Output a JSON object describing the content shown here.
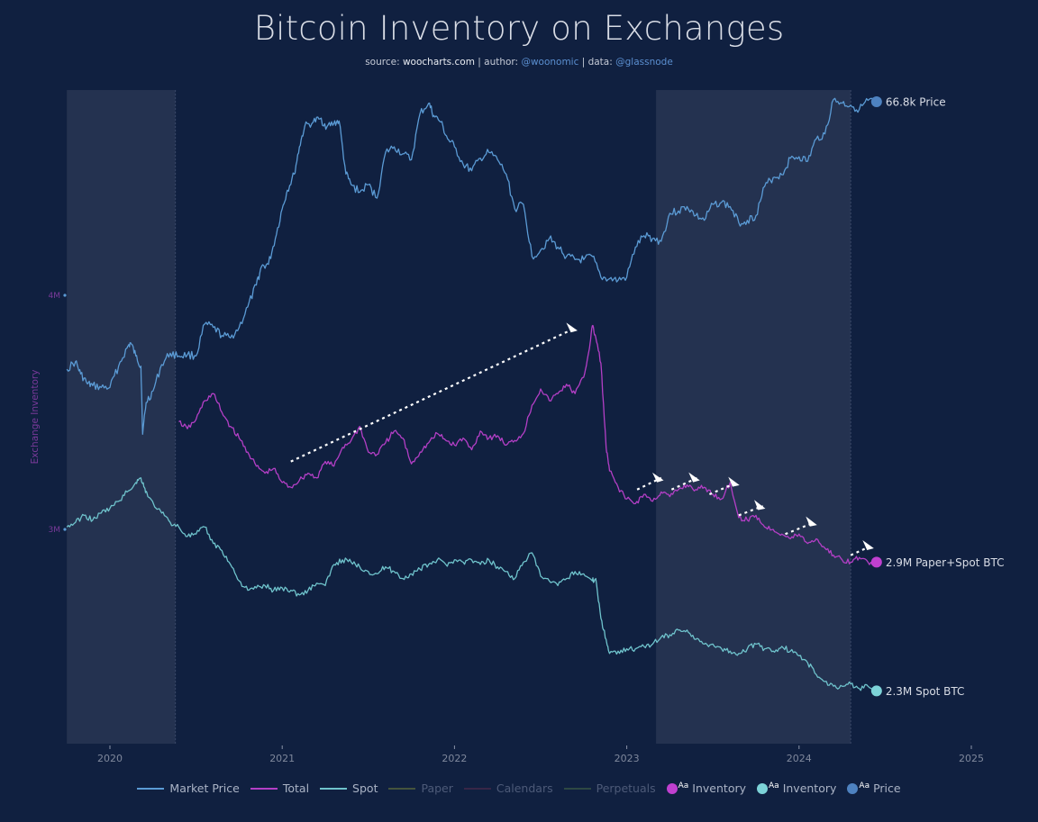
{
  "header": {
    "title": "Bitcoin Inventory on Exchanges",
    "subtitle": {
      "source_label": "source: ",
      "source": "woocharts.com",
      "author_label": " | author: ",
      "author": "@woonomic",
      "data_label": " | data: ",
      "data": "@glassnode"
    }
  },
  "legend": [
    {
      "label": "Market Price",
      "kind": "line",
      "color": "#5b9bd5",
      "active": true
    },
    {
      "label": "Total",
      "kind": "line",
      "color": "#b43fc6",
      "active": true
    },
    {
      "label": "Spot",
      "kind": "line",
      "color": "#6fc3cc",
      "active": true
    },
    {
      "label": "Paper",
      "kind": "line",
      "color": "#5c6b3a",
      "active": false
    },
    {
      "label": "Calendars",
      "kind": "line",
      "color": "#4a2a4a",
      "active": false
    },
    {
      "label": "Perpetuals",
      "kind": "line",
      "color": "#3c5a44",
      "active": false
    },
    {
      "label": "Inventory",
      "kind": "marker",
      "color": "#c040d0",
      "active": true
    },
    {
      "label": "Inventory",
      "kind": "marker",
      "color": "#7dd3d8",
      "active": true
    },
    {
      "label": "Price",
      "kind": "marker",
      "color": "#4e82c0",
      "active": true
    }
  ],
  "chart_data": {
    "type": "line",
    "title": "Bitcoin Inventory on Exchanges",
    "xlabel": "",
    "ylabel": "Exchange Inventory",
    "xlim": [
      2019.75,
      2025.05
    ],
    "ylim_inventory_M": [
      2.05,
      4.85
    ],
    "price_axis": "log, hidden",
    "price_range_k": [
      6,
      75
    ],
    "x_ticks": [
      2020,
      2021,
      2022,
      2023,
      2024,
      2025
    ],
    "x_tick_labels": [
      "2020",
      "2021",
      "2022",
      "2023",
      "2024",
      "2025"
    ],
    "y_ticks": [
      3,
      4
    ],
    "y_tick_labels": [
      "3M",
      "4M"
    ],
    "grid": false,
    "legend_position": "bottom",
    "shaded_regions": [
      [
        2019.75,
        2020.38
      ],
      [
        2023.17,
        2024.3
      ]
    ],
    "series": [
      {
        "name": "Market Price",
        "unit": "USD thousands",
        "color": "#5b9bd5",
        "axis": "price",
        "x": [
          2019.75,
          2019.8,
          2019.83,
          2019.87,
          2019.9,
          2019.95,
          2020.0,
          2020.05,
          2020.1,
          2020.12,
          2020.15,
          2020.18,
          2020.19,
          2020.21,
          2020.25,
          2020.3,
          2020.35,
          2020.4,
          2020.45,
          2020.5,
          2020.55,
          2020.6,
          2020.65,
          2020.7,
          2020.75,
          2020.8,
          2020.85,
          2020.88,
          2020.92,
          2020.96,
          2021.0,
          2021.03,
          2021.07,
          2021.1,
          2021.13,
          2021.18,
          2021.22,
          2021.26,
          2021.3,
          2021.33,
          2021.37,
          2021.4,
          2021.45,
          2021.5,
          2021.55,
          2021.6,
          2021.65,
          2021.7,
          2021.75,
          2021.8,
          2021.85,
          2021.88,
          2021.92,
          2021.96,
          2022.0,
          2022.05,
          2022.1,
          2022.15,
          2022.2,
          2022.25,
          2022.3,
          2022.35,
          2022.4,
          2022.45,
          2022.5,
          2022.55,
          2022.6,
          2022.65,
          2022.7,
          2022.75,
          2022.8,
          2022.85,
          2022.9,
          2022.95,
          2023.0,
          2023.05,
          2023.1,
          2023.15,
          2023.2,
          2023.25,
          2023.3,
          2023.35,
          2023.4,
          2023.45,
          2023.5,
          2023.55,
          2023.6,
          2023.65,
          2023.7,
          2023.75,
          2023.8,
          2023.85,
          2023.9,
          2023.95,
          2024.0,
          2024.05,
          2024.1,
          2024.15,
          2024.2,
          2024.25,
          2024.3,
          2024.35,
          2024.4,
          2024.45
        ],
        "values": [
          8.3,
          8.8,
          8.0,
          7.4,
          7.3,
          7.2,
          7.2,
          8.5,
          9.8,
          10.2,
          9.2,
          8.5,
          5.0,
          6.4,
          7.0,
          8.6,
          9.4,
          9.2,
          9.3,
          9.2,
          11.8,
          11.5,
          10.8,
          10.6,
          11.5,
          13.5,
          16.0,
          18.5,
          18.8,
          23.0,
          29.0,
          33.5,
          38.0,
          47.0,
          55.0,
          57.0,
          58.5,
          55.0,
          56.5,
          57.5,
          38.0,
          35.0,
          33.0,
          35.0,
          31.5,
          45.0,
          47.0,
          44.5,
          42.5,
          61.0,
          66.0,
          60.0,
          57.0,
          50.0,
          47.0,
          41.0,
          39.0,
          43.0,
          45.0,
          42.5,
          38.0,
          29.0,
          30.0,
          20.0,
          21.0,
          23.0,
          21.5,
          20.0,
          19.5,
          19.5,
          20.0,
          17.0,
          16.8,
          16.6,
          17.0,
          21.5,
          23.5,
          23.0,
          22.5,
          28.0,
          28.5,
          29.5,
          27.5,
          26.5,
          30.0,
          30.5,
          29.5,
          26.0,
          26.5,
          27.5,
          34.5,
          37.0,
          37.8,
          43.0,
          43.5,
          42.0,
          50.0,
          52.0,
          68.0,
          66.0,
          65.0,
          63.0,
          67.5,
          66.8
        ]
      },
      {
        "name": "Total",
        "unit": "BTC millions",
        "color": "#b43fc6",
        "axis": "inventory",
        "x": [
          2020.4,
          2020.45,
          2020.5,
          2020.55,
          2020.6,
          2020.65,
          2020.7,
          2020.75,
          2020.8,
          2020.85,
          2020.9,
          2020.95,
          2021.0,
          2021.05,
          2021.1,
          2021.15,
          2021.2,
          2021.25,
          2021.3,
          2021.35,
          2021.4,
          2021.45,
          2021.5,
          2021.55,
          2021.6,
          2021.65,
          2021.7,
          2021.75,
          2021.8,
          2021.85,
          2021.9,
          2021.95,
          2022.0,
          2022.05,
          2022.1,
          2022.15,
          2022.2,
          2022.25,
          2022.3,
          2022.35,
          2022.4,
          2022.45,
          2022.5,
          2022.55,
          2022.6,
          2022.65,
          2022.7,
          2022.75,
          2022.78,
          2022.8,
          2022.82,
          2022.85,
          2022.88,
          2022.9,
          2022.95,
          2023.0,
          2023.05,
          2023.1,
          2023.15,
          2023.2,
          2023.25,
          2023.3,
          2023.35,
          2023.4,
          2023.45,
          2023.5,
          2023.55,
          2023.6,
          2023.65,
          2023.7,
          2023.75,
          2023.8,
          2023.85,
          2023.9,
          2023.95,
          2024.0,
          2024.05,
          2024.1,
          2024.15,
          2024.2,
          2024.25,
          2024.3,
          2024.35,
          2024.4,
          2024.45
        ],
        "values": [
          3.46,
          3.43,
          3.47,
          3.55,
          3.58,
          3.5,
          3.44,
          3.39,
          3.33,
          3.27,
          3.24,
          3.26,
          3.2,
          3.18,
          3.21,
          3.24,
          3.22,
          3.29,
          3.27,
          3.35,
          3.38,
          3.44,
          3.33,
          3.32,
          3.37,
          3.42,
          3.39,
          3.28,
          3.33,
          3.37,
          3.41,
          3.38,
          3.36,
          3.39,
          3.34,
          3.42,
          3.39,
          3.4,
          3.36,
          3.38,
          3.41,
          3.53,
          3.6,
          3.55,
          3.58,
          3.62,
          3.58,
          3.65,
          3.76,
          3.87,
          3.82,
          3.71,
          3.35,
          3.25,
          3.18,
          3.13,
          3.11,
          3.15,
          3.12,
          3.16,
          3.14,
          3.17,
          3.19,
          3.17,
          3.18,
          3.15,
          3.13,
          3.2,
          3.05,
          3.04,
          3.06,
          3.01,
          3.0,
          2.98,
          2.96,
          2.98,
          2.94,
          2.96,
          2.92,
          2.89,
          2.87,
          2.86,
          2.88,
          2.86,
          2.86
        ]
      },
      {
        "name": "Spot",
        "unit": "BTC millions",
        "color": "#6fc3cc",
        "axis": "inventory",
        "x": [
          2019.75,
          2019.8,
          2019.85,
          2019.9,
          2019.95,
          2020.0,
          2020.05,
          2020.1,
          2020.15,
          2020.18,
          2020.2,
          2020.22,
          2020.3,
          2020.35,
          2020.4,
          2020.45,
          2020.5,
          2020.55,
          2020.6,
          2020.65,
          2020.7,
          2020.75,
          2020.8,
          2020.85,
          2020.9,
          2020.95,
          2021.0,
          2021.05,
          2021.1,
          2021.15,
          2021.2,
          2021.25,
          2021.3,
          2021.35,
          2021.4,
          2021.45,
          2021.5,
          2021.55,
          2021.6,
          2021.65,
          2021.7,
          2021.75,
          2021.8,
          2021.85,
          2021.9,
          2021.95,
          2022.0,
          2022.05,
          2022.1,
          2022.15,
          2022.2,
          2022.25,
          2022.3,
          2022.35,
          2022.4,
          2022.45,
          2022.5,
          2022.55,
          2022.6,
          2022.65,
          2022.7,
          2022.75,
          2022.8,
          2022.82,
          2022.85,
          2022.88,
          2022.9,
          2022.95,
          2023.0,
          2023.05,
          2023.1,
          2023.15,
          2023.2,
          2023.25,
          2023.3,
          2023.35,
          2023.4,
          2023.45,
          2023.5,
          2023.55,
          2023.6,
          2023.65,
          2023.7,
          2023.75,
          2023.8,
          2023.85,
          2023.9,
          2023.95,
          2024.0,
          2024.05,
          2024.1,
          2024.15,
          2024.2,
          2024.25,
          2024.3,
          2024.35,
          2024.4,
          2024.45
        ],
        "values": [
          3.01,
          3.03,
          3.06,
          3.04,
          3.07,
          3.09,
          3.12,
          3.16,
          3.2,
          3.22,
          3.18,
          3.14,
          3.07,
          3.03,
          3.01,
          2.97,
          2.98,
          3.01,
          2.94,
          2.91,
          2.85,
          2.78,
          2.74,
          2.75,
          2.76,
          2.74,
          2.75,
          2.74,
          2.72,
          2.74,
          2.77,
          2.76,
          2.85,
          2.87,
          2.86,
          2.84,
          2.82,
          2.81,
          2.84,
          2.82,
          2.79,
          2.81,
          2.83,
          2.85,
          2.87,
          2.85,
          2.87,
          2.86,
          2.87,
          2.85,
          2.87,
          2.84,
          2.82,
          2.79,
          2.86,
          2.9,
          2.8,
          2.78,
          2.76,
          2.79,
          2.82,
          2.81,
          2.78,
          2.79,
          2.62,
          2.53,
          2.47,
          2.48,
          2.49,
          2.49,
          2.5,
          2.51,
          2.54,
          2.55,
          2.57,
          2.57,
          2.53,
          2.51,
          2.51,
          2.49,
          2.48,
          2.47,
          2.49,
          2.51,
          2.49,
          2.48,
          2.5,
          2.48,
          2.46,
          2.43,
          2.38,
          2.35,
          2.33,
          2.33,
          2.34,
          2.32,
          2.33,
          2.31
        ]
      }
    ],
    "annotations": [
      {
        "type": "dotted-arrow",
        "from": [
          2021.05,
          3.29
        ],
        "to": [
          2022.7,
          3.86
        ]
      },
      {
        "type": "dotted-arrow",
        "from": [
          2023.06,
          3.17
        ],
        "to": [
          2023.2,
          3.22
        ]
      },
      {
        "type": "dotted-arrow",
        "from": [
          2023.26,
          3.17
        ],
        "to": [
          2023.41,
          3.22
        ]
      },
      {
        "type": "dotted-arrow",
        "from": [
          2023.48,
          3.15
        ],
        "to": [
          2023.64,
          3.2
        ]
      },
      {
        "type": "dotted-arrow",
        "from": [
          2023.65,
          3.06
        ],
        "to": [
          2023.79,
          3.1
        ]
      },
      {
        "type": "dotted-arrow",
        "from": [
          2023.92,
          2.98
        ],
        "to": [
          2024.09,
          3.03
        ]
      },
      {
        "type": "dotted-arrow",
        "from": [
          2024.3,
          2.89
        ],
        "to": [
          2024.42,
          2.93
        ]
      }
    ],
    "end_labels": [
      {
        "series": "Market Price",
        "text": "66.8k Price",
        "color": "#4e82c0"
      },
      {
        "series": "Total",
        "text": "2.9M Paper+Spot BTC",
        "color": "#c040d0"
      },
      {
        "series": "Spot",
        "text": "2.3M Spot BTC",
        "color": "#7dd3d8"
      }
    ]
  }
}
